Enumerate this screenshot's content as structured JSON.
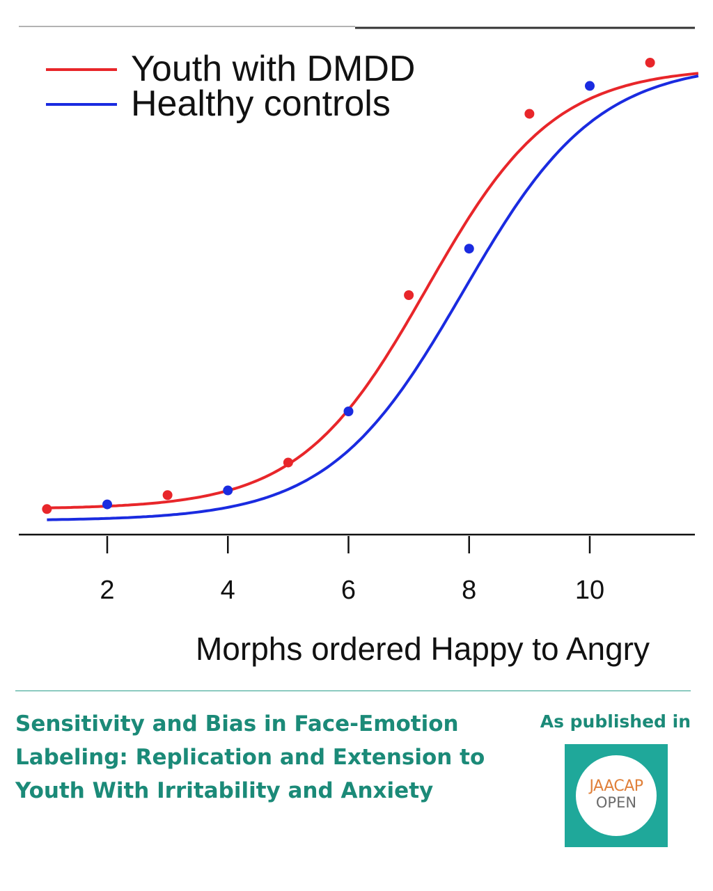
{
  "chart_data": {
    "type": "line",
    "title": "",
    "xlabel": "Morphs ordered Happy to Angry",
    "ylabel": "",
    "xlim": [
      0.5,
      11.8
    ],
    "ylim": [
      0,
      1
    ],
    "x_ticks": [
      2,
      4,
      6,
      8,
      10
    ],
    "grid": false,
    "legend_position": "top-left",
    "series": [
      {
        "name": "Youth with DMDD",
        "color": "#e8262a",
        "curve": {
          "x0": 7.3,
          "k": 0.95,
          "lower": 0.04,
          "upper": 0.99
        },
        "points": [
          {
            "x": 1,
            "y": 0.04
          },
          {
            "x": 3,
            "y": 0.07
          },
          {
            "x": 5,
            "y": 0.14
          },
          {
            "x": 7,
            "y": 0.5
          },
          {
            "x": 9,
            "y": 0.89
          },
          {
            "x": 11,
            "y": 1.0
          }
        ]
      },
      {
        "name": "Healthy controls",
        "color": "#1a2be0",
        "curve": {
          "x0": 7.9,
          "k": 0.9,
          "lower": 0.015,
          "upper": 1.0
        },
        "points": [
          {
            "x": 2,
            "y": 0.05
          },
          {
            "x": 4,
            "y": 0.08
          },
          {
            "x": 6,
            "y": 0.25
          },
          {
            "x": 8,
            "y": 0.6
          },
          {
            "x": 10,
            "y": 0.95
          }
        ]
      }
    ]
  },
  "footer": {
    "title": "Sensitivity and Bias in Face-Emotion\nLabeling: Replication and Extension to\nYouth With Irritability and Anxiety",
    "published_label": "As published in",
    "logo_top": "JAACAP",
    "logo_bottom": "OPEN"
  }
}
